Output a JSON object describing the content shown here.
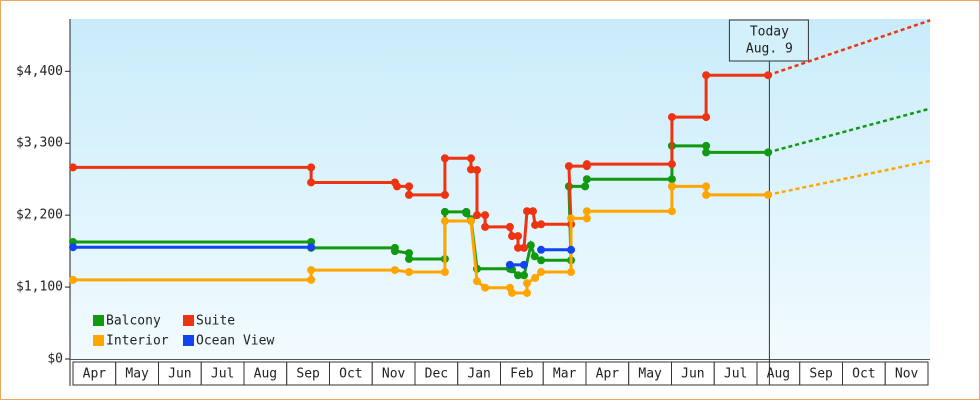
{
  "chart_data": {
    "type": "step-line",
    "xlim": [
      0,
      20
    ],
    "xticks": [
      {
        "value": 0.5,
        "label": "Apr"
      },
      {
        "value": 1.5,
        "label": "May"
      },
      {
        "value": 2.5,
        "label": "Jun"
      },
      {
        "value": 3.5,
        "label": "Jul"
      },
      {
        "value": 4.5,
        "label": "Aug"
      },
      {
        "value": 5.5,
        "label": "Sep"
      },
      {
        "value": 6.5,
        "label": "Oct"
      },
      {
        "value": 7.5,
        "label": "Nov"
      },
      {
        "value": 8.5,
        "label": "Dec"
      },
      {
        "value": 9.5,
        "label": "Jan"
      },
      {
        "value": 10.5,
        "label": "Feb"
      },
      {
        "value": 11.5,
        "label": "Mar"
      },
      {
        "value": 12.5,
        "label": "Apr"
      },
      {
        "value": 13.5,
        "label": "May"
      },
      {
        "value": 14.5,
        "label": "Jun"
      },
      {
        "value": 15.5,
        "label": "Jul"
      },
      {
        "value": 16.5,
        "label": "Aug"
      },
      {
        "value": 17.5,
        "label": "Sep"
      },
      {
        "value": 18.5,
        "label": "Oct"
      },
      {
        "value": 19.5,
        "label": "Nov"
      }
    ],
    "ylim": [
      0,
      5200
    ],
    "yticks": [
      {
        "value": 0,
        "label": "$0"
      },
      {
        "value": 1100,
        "label": "$1,100"
      },
      {
        "value": 2200,
        "label": "$2,200"
      },
      {
        "value": 3300,
        "label": "$3,300"
      },
      {
        "value": 4400,
        "label": "$4,400"
      }
    ],
    "annotation": {
      "x": 16.29,
      "lines": [
        "Today",
        "Aug. 9"
      ]
    },
    "legend": "lower left",
    "series": [
      {
        "name": "Balcony",
        "color": "#119911",
        "x": [
          0,
          5.57,
          5.57,
          7.53,
          7.53,
          7.86,
          7.86,
          8.7,
          8.7,
          9.2,
          9.2,
          9.31,
          9.45,
          10.22,
          10.27,
          10.41,
          10.55,
          10.71,
          10.8,
          10.95,
          11.65,
          11.6,
          11.98,
          12.02,
          14.01,
          14.01,
          14.81,
          14.81,
          16.26
        ],
        "values": [
          1790,
          1790,
          1700,
          1700,
          1650,
          1620,
          1530,
          1530,
          2250,
          2250,
          2230,
          2140,
          1380,
          1380,
          1370,
          1280,
          1280,
          1740,
          1570,
          1510,
          1510,
          2640,
          2640,
          2750,
          2750,
          3260,
          3260,
          3160,
          3160
        ],
        "forecast": {
          "x": [
            16.26,
            20.05
          ],
          "values": [
            3160,
            3830
          ]
        }
      },
      {
        "name": "Suite",
        "color": "#ee3311",
        "x": [
          0,
          5.57,
          5.57,
          7.53,
          7.58,
          7.86,
          7.86,
          8.7,
          8.7,
          9.31,
          9.31,
          9.45,
          9.45,
          9.64,
          9.64,
          10.22,
          10.27,
          10.41,
          10.41,
          10.55,
          10.62,
          10.76,
          10.81,
          10.95,
          11.65,
          11.6,
          12.02,
          12.02,
          14.01,
          14.01,
          14.81,
          14.81,
          16.26
        ],
        "values": [
          2930,
          2930,
          2700,
          2700,
          2640,
          2640,
          2510,
          2510,
          3070,
          3070,
          2900,
          2890,
          2200,
          2200,
          2020,
          2020,
          1880,
          1880,
          1700,
          1700,
          2260,
          2260,
          2050,
          2060,
          2060,
          2950,
          2950,
          2980,
          2980,
          3700,
          3700,
          4340,
          4340
        ],
        "forecast": {
          "x": [
            16.26,
            20.05
          ],
          "values": [
            4340,
            5180
          ]
        }
      },
      {
        "name": "Interior",
        "color": "#ffa500",
        "x": [
          0,
          5.57,
          5.57,
          7.53,
          7.86,
          8.7,
          8.7,
          9.31,
          9.45,
          9.64,
          10.22,
          10.27,
          10.62,
          10.62,
          10.81,
          10.95,
          11.65,
          11.65,
          12.02,
          12.02,
          14.01,
          14.01,
          14.81,
          14.81,
          16.26
        ],
        "values": [
          1210,
          1210,
          1360,
          1360,
          1330,
          1330,
          2110,
          2110,
          1190,
          1090,
          1090,
          1010,
          1010,
          1160,
          1240,
          1330,
          1330,
          2150,
          2150,
          2260,
          2260,
          2640,
          2640,
          2510,
          2510
        ],
        "forecast": {
          "x": [
            16.26,
            20.05
          ],
          "values": [
            2510,
            3030
          ]
        }
      },
      {
        "name": "Ocean View",
        "color": "#1144ee",
        "x": [
          0,
          5.57,
          7.0,
          10.22,
          10.55,
          10.7,
          10.95,
          11.65
        ],
        "values": [
          1710,
          1710,
          null,
          1440,
          1440,
          null,
          1670,
          1670
        ]
      }
    ]
  }
}
